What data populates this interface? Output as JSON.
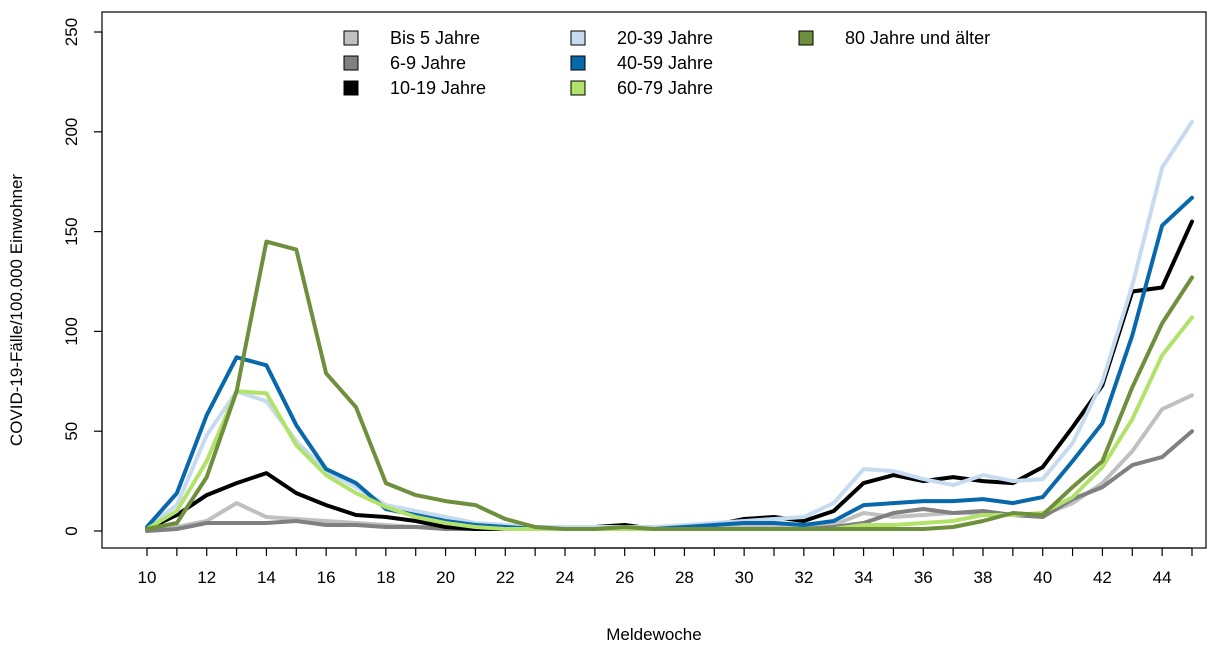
{
  "chart_data": {
    "type": "line",
    "xlabel": "Meldewoche",
    "ylabel": "COVID-19-Fälle/100.000 Einwohner",
    "xlim": [
      10,
      45
    ],
    "ylim": [
      0,
      250
    ],
    "x_ticks": [
      10,
      12,
      14,
      16,
      18,
      20,
      22,
      24,
      26,
      28,
      30,
      32,
      34,
      36,
      38,
      40,
      42,
      44
    ],
    "y_ticks": [
      0,
      50,
      100,
      150,
      200,
      250
    ],
    "grid": false,
    "legend_position": "top-center",
    "x": [
      10,
      11,
      12,
      13,
      14,
      15,
      16,
      17,
      18,
      19,
      20,
      21,
      22,
      23,
      24,
      25,
      26,
      27,
      28,
      29,
      30,
      31,
      32,
      33,
      34,
      35,
      36,
      37,
      38,
      39,
      40,
      41,
      42,
      43,
      44,
      45
    ],
    "series": [
      {
        "name": "Bis 5 Jahre",
        "color": "#c0c0c0",
        "values": [
          1,
          2,
          5,
          14,
          7,
          6,
          5,
          4,
          3,
          2,
          2,
          1,
          1,
          1,
          1,
          1,
          1,
          1,
          1,
          1,
          2,
          2,
          2,
          3,
          9,
          7,
          8,
          9,
          9,
          8,
          8,
          14,
          24,
          40,
          61,
          68
        ]
      },
      {
        "name": "6-9 Jahre",
        "color": "#808080",
        "values": [
          0,
          1,
          4,
          4,
          4,
          5,
          3,
          3,
          2,
          2,
          1,
          1,
          1,
          1,
          1,
          1,
          1,
          1,
          1,
          1,
          1,
          1,
          1,
          2,
          4,
          9,
          11,
          9,
          10,
          8,
          7,
          16,
          22,
          33,
          37,
          50
        ]
      },
      {
        "name": "10-19 Jahre",
        "color": "#000000",
        "values": [
          1,
          8,
          18,
          24,
          29,
          19,
          13,
          8,
          7,
          5,
          2,
          1,
          1,
          1,
          1,
          2,
          3,
          1,
          2,
          3,
          6,
          7,
          5,
          10,
          24,
          28,
          25,
          27,
          25,
          24,
          32,
          52,
          73,
          120,
          122,
          155
        ]
      },
      {
        "name": "20-39 Jahre",
        "color": "#c6dbef",
        "values": [
          2,
          13,
          48,
          70,
          65,
          45,
          30,
          22,
          13,
          10,
          7,
          4,
          3,
          2,
          2,
          2,
          2,
          2,
          3,
          4,
          5,
          6,
          7,
          14,
          31,
          30,
          26,
          23,
          28,
          25,
          26,
          44,
          75,
          123,
          182,
          205
        ]
      },
      {
        "name": "40-59 Jahre",
        "color": "#0868ac",
        "values": [
          2,
          19,
          58,
          87,
          83,
          53,
          31,
          24,
          11,
          8,
          5,
          3,
          2,
          1,
          1,
          1,
          1,
          1,
          2,
          3,
          4,
          4,
          3,
          5,
          13,
          14,
          15,
          15,
          16,
          14,
          17,
          35,
          54,
          98,
          153,
          167
        ]
      },
      {
        "name": "60-79 Jahre",
        "color": "#b2e26a",
        "values": [
          1,
          10,
          35,
          70,
          69,
          43,
          28,
          19,
          12,
          7,
          4,
          2,
          1,
          1,
          1,
          1,
          1,
          1,
          1,
          1,
          1,
          1,
          1,
          1,
          3,
          3,
          4,
          5,
          8,
          8,
          9,
          17,
          32,
          56,
          88,
          107
        ]
      },
      {
        "name": "80 Jahre und älter",
        "color": "#6e8f3c",
        "values": [
          1,
          4,
          27,
          70,
          145,
          141,
          79,
          62,
          24,
          18,
          15,
          13,
          6,
          2,
          1,
          1,
          2,
          1,
          1,
          1,
          1,
          1,
          1,
          1,
          1,
          1,
          1,
          2,
          5,
          9,
          8,
          22,
          35,
          72,
          104,
          127
        ]
      }
    ]
  }
}
